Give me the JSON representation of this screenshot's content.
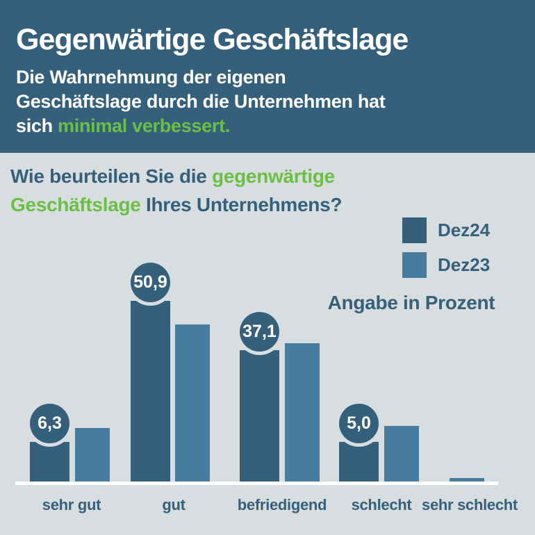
{
  "colors": {
    "header_bg": "#35607b",
    "body_bg": "#d8dde0",
    "bar_dark": "#35607b",
    "bar_light": "#487c9e",
    "green": "#6bbf45",
    "text_dark": "#35607b",
    "axis_line": "#ffffff"
  },
  "header": {
    "title": "Gegenwärtige Geschäftslage",
    "subtitle_lines": [
      [
        {
          "t": "Die Wahrnehmung der eigenen",
          "c": "white"
        }
      ],
      [
        {
          "t": "Geschäftslage durch die Unternehmen hat",
          "c": "white"
        }
      ],
      [
        {
          "t": "sich ",
          "c": "white"
        },
        {
          "t": "minimal verbessert.",
          "c": "green"
        }
      ]
    ]
  },
  "question_lines": [
    [
      {
        "t": "Wie beurteilen Sie die ",
        "c": "dark"
      },
      {
        "t": "gegenwärtige",
        "c": "green"
      }
    ],
    [
      {
        "t": "Geschäftslage",
        "c": "green"
      },
      {
        "t": " Ihres Unternehmens?",
        "c": "dark"
      }
    ]
  ],
  "chart_data": {
    "type": "bar",
    "title": "Wie beurteilen Sie die gegenwärtige Geschäftslage Ihres Unternehmens?",
    "categories": [
      "sehr gut",
      "gut",
      "befriedigend",
      "schlecht",
      "sehr schlecht"
    ],
    "series": [
      {
        "name": "Dez24",
        "color_key": "bar_dark",
        "values": [
          6.3,
          50.9,
          37.1,
          5.0,
          0
        ]
      },
      {
        "name": "Dez23",
        "color_key": "bar_light",
        "estimated": true,
        "values": [
          15.0,
          44.3,
          39.0,
          15.7,
          0.9
        ]
      }
    ],
    "value_labels": [
      "6,3",
      "50,9",
      "37,1",
      "5,0",
      null
    ],
    "note": "Angabe in Prozent",
    "xlabel": "",
    "ylabel": "",
    "ylim": [
      0,
      55
    ],
    "grid": false,
    "legend_position": "top-right"
  }
}
